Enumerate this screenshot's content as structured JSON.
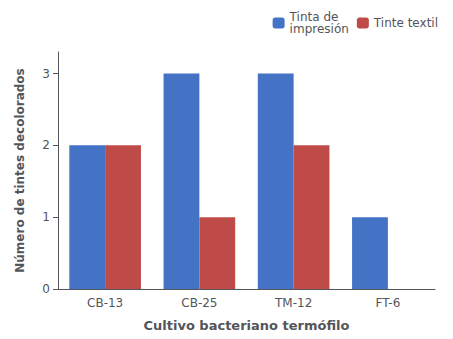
{
  "chart_data": {
    "type": "bar",
    "categories": [
      "CB-13",
      "CB-25",
      "TM-12",
      "FT-6"
    ],
    "series": [
      {
        "name": "Tinta de\nimpresión",
        "color": "#4472C4",
        "values": [
          2,
          3,
          3,
          1
        ]
      },
      {
        "name": "Tinte textil",
        "color": "#BE4B48",
        "values": [
          2,
          1,
          2,
          0
        ]
      }
    ],
    "xlabel": "Cultivo bacteriano termófilo",
    "ylabel": "Número de tintes decolorados",
    "ylim": [
      0,
      3.3
    ],
    "yticks": [
      0,
      1,
      2,
      3
    ],
    "grid": false,
    "legend": "upper right"
  }
}
